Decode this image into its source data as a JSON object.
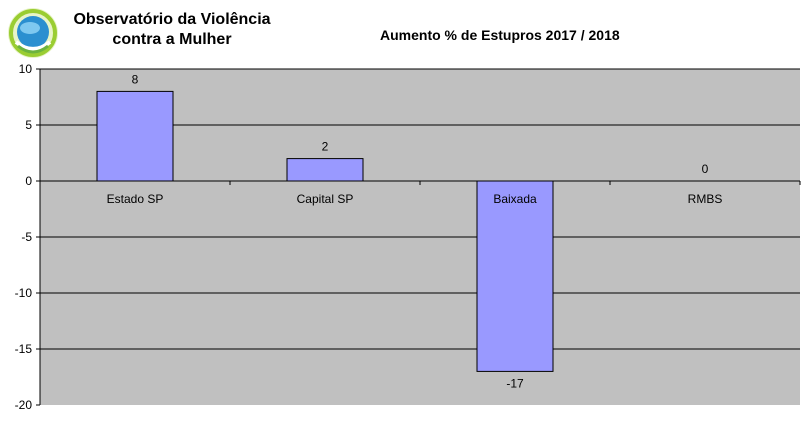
{
  "header": {
    "org_line1": "Observatório da Violência",
    "org_line2": "contra a Mulher"
  },
  "chart_data": {
    "type": "bar",
    "title": "Aumento % de Estupros 2017 / 2018",
    "categories": [
      "Estado SP",
      "Capital SP",
      "Baixada",
      "RMBS"
    ],
    "values": [
      8,
      2,
      -17,
      0
    ],
    "data_labels": [
      "8",
      "2",
      "-17",
      "0"
    ],
    "ylim": [
      -20,
      10
    ],
    "yticks": [
      10,
      5,
      0,
      -5,
      -10,
      -15,
      -20
    ],
    "grid": true,
    "legend": "none",
    "colors": {
      "bar_fill": "#9999ff",
      "bar_stroke": "#000000",
      "plot_background": "#c0c0c0",
      "gridline": "#000000"
    }
  }
}
